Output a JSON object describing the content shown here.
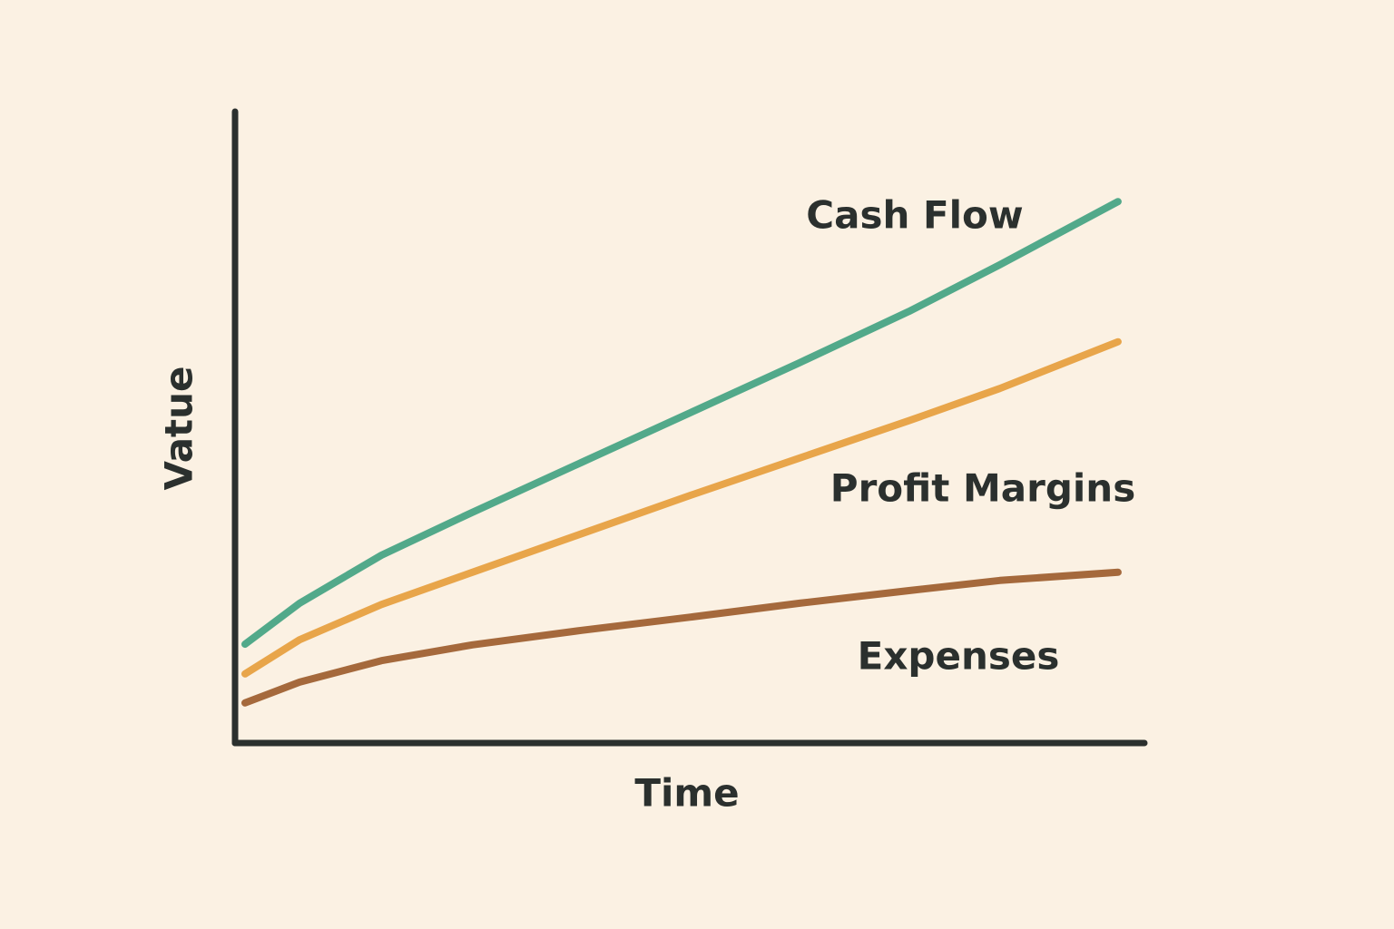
{
  "chart_data": {
    "type": "line",
    "x_label": "Time",
    "y_label": "Vatue",
    "x": [
      1,
      7,
      16,
      26,
      38,
      50,
      62,
      74,
      84,
      97
    ],
    "series": [
      {
        "name": "Cash Flow",
        "color": "#52a98a",
        "values": [
          15.5,
          22,
          29.6,
          36.4,
          44.3,
          52.2,
          60.1,
          68.2,
          75.6,
          85.6
        ]
      },
      {
        "name": "Profit Margins",
        "color": "#e8a54a",
        "values": [
          10.8,
          16.2,
          21.8,
          26.9,
          33,
          39.1,
          45,
          50.9,
          56,
          63.4
        ]
      },
      {
        "name": "Expenses",
        "color": "#a5693c",
        "values": [
          6.2,
          9.5,
          12.9,
          15.4,
          17.7,
          19.8,
          22,
          24,
          25.6,
          26.9
        ]
      }
    ],
    "xlim": [
      0,
      100
    ],
    "ylim": [
      0,
      100
    ],
    "grid": false
  }
}
